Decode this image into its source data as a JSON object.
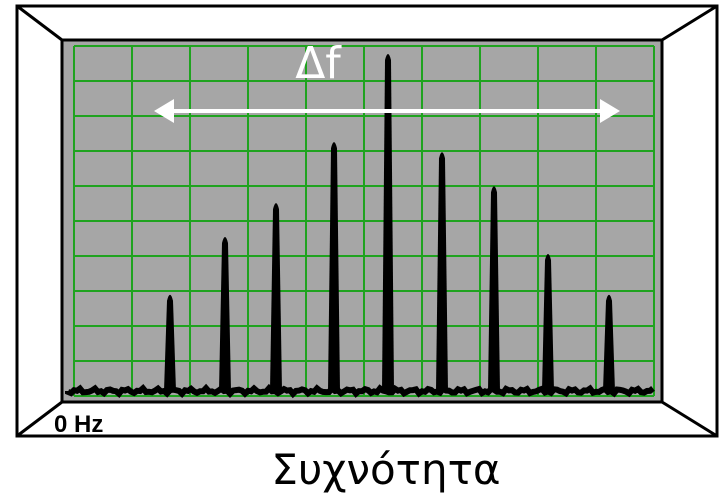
{
  "labels": {
    "delta_f": "Δf",
    "zero_hz": "0 Hz",
    "frequency": "Συχνότητα"
  },
  "colors": {
    "screen": "#a6a6a6",
    "grid": "#1fa31f",
    "trace": "#000000",
    "arrow": "#ffffff",
    "bezel": "#ffffff"
  },
  "spectrum": {
    "grid": {
      "vertical_divisions": 10,
      "horizontal_divisions": 10
    },
    "peak_count": 9,
    "center_peak_index": 4,
    "relative_amplitudes": [
      0.29,
      0.46,
      0.56,
      0.74,
      1.0,
      0.71,
      0.61,
      0.41,
      0.29
    ]
  }
}
